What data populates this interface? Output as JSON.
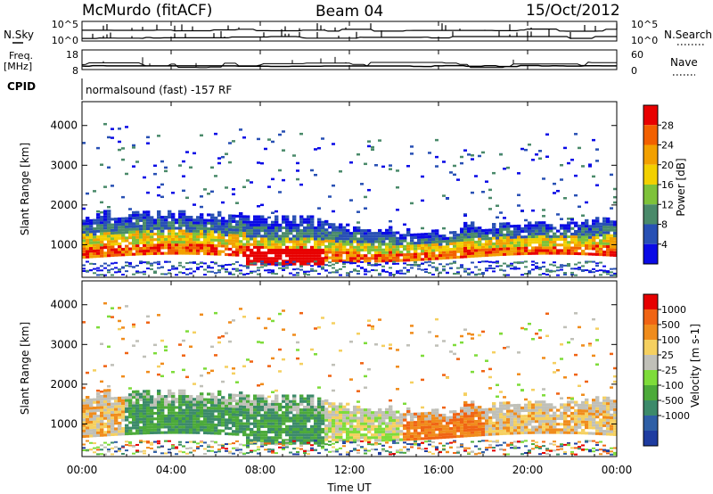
{
  "header": {
    "station": "McMurdo (fitACF)",
    "beam": "Beam 04",
    "date": "15/Oct/2012"
  },
  "noise_panel": {
    "left_label": "N.Sky",
    "right_label": "N.Search",
    "left_ticks": [
      "10^5",
      "10^0"
    ],
    "right_ticks": [
      "10^5",
      "10^0"
    ]
  },
  "freq_panel": {
    "left_label": "Freq.",
    "left_unit": "[MHz]",
    "right_label": "Nave",
    "left_ticks": [
      "18",
      "8"
    ],
    "right_ticks": [
      "60",
      "0"
    ]
  },
  "cpid": {
    "label": "CPID",
    "value": "normalsound (fast) -157 RF"
  },
  "chart_data": [
    {
      "type": "heatmap",
      "ylabel": "Slant Range [km]",
      "yticks": [
        "1000",
        "2000",
        "3000",
        "4000"
      ],
      "ylim": [
        180,
        4600
      ],
      "colorbar_label": "Power [dB]",
      "colorbar_ticks": [
        "4",
        "8",
        "12",
        "16",
        "20",
        "24",
        "28"
      ],
      "colorbar_colors": [
        "#0a0ae6",
        "#2850b4",
        "#4a8a6a",
        "#7ec23a",
        "#f2d000",
        "#f2a000",
        "#f26000",
        "#e80000"
      ]
    },
    {
      "type": "heatmap",
      "ylabel": "Slant Range [km]",
      "yticks": [
        "1000",
        "2000",
        "3000",
        "4000"
      ],
      "ylim": [
        180,
        4600
      ],
      "colorbar_label": "Velocity [m s-1]",
      "colorbar_ticks": [
        "1000",
        "500",
        "100",
        "25",
        "-25",
        "-100",
        "-500",
        "-1000"
      ],
      "colorbar_colors": [
        "#1e3ca0",
        "#2e5fa6",
        "#3c8a6a",
        "#4caa3a",
        "#7edc3a",
        "#c0c0b8",
        "#f5d060",
        "#f08c1c",
        "#f06414",
        "#e60000"
      ]
    }
  ],
  "time_axis": {
    "label": "Time UT",
    "ticks": [
      "00:00",
      "04:00",
      "08:00",
      "12:00",
      "16:00",
      "20:00",
      "00:00"
    ]
  }
}
